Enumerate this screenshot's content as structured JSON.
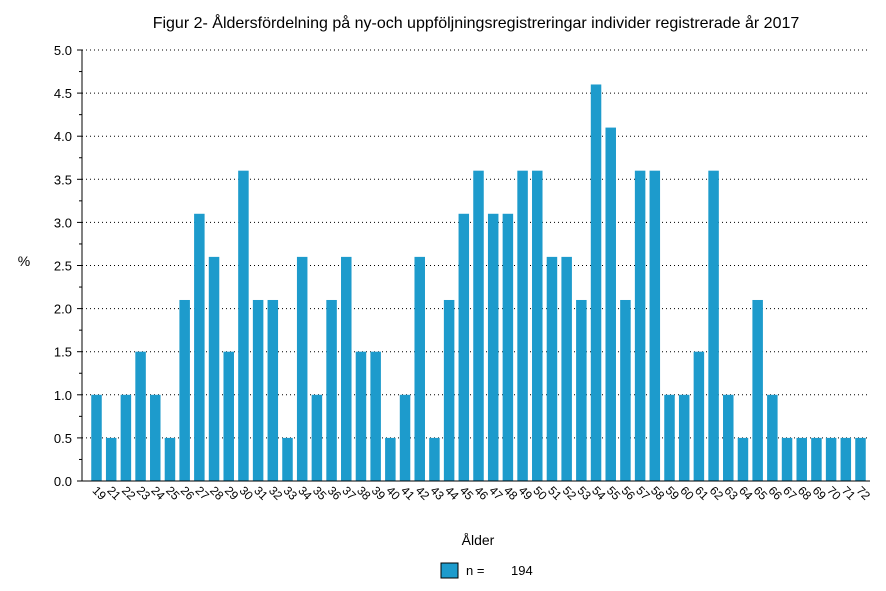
{
  "chart_data": {
    "type": "bar",
    "title": "Figur 2- Åldersfördelning på ny-och uppföljningsregistreringar individer registrerade år 2017",
    "xlabel": "Ålder",
    "ylabel": "%",
    "ylim": [
      0,
      5.0
    ],
    "yticks": [
      "0.0",
      "0.5",
      "1.0",
      "1.5",
      "2.0",
      "2.5",
      "3.0",
      "3.5",
      "4.0",
      "4.5",
      "5.0"
    ],
    "grid": "horizontal-dotted",
    "legend_position": "bottom-center",
    "bar_color": "#1d9bcc",
    "categories": [
      "19",
      "21",
      "22",
      "23",
      "24",
      "25",
      "26",
      "27",
      "28",
      "29",
      "30",
      "31",
      "32",
      "33",
      "34",
      "35",
      "36",
      "37",
      "38",
      "39",
      "40",
      "41",
      "42",
      "43",
      "44",
      "45",
      "46",
      "47",
      "48",
      "49",
      "50",
      "51",
      "52",
      "53",
      "54",
      "55",
      "56",
      "57",
      "58",
      "59",
      "60",
      "61",
      "62",
      "63",
      "64",
      "65",
      "66",
      "67",
      "68",
      "69",
      "70",
      "71",
      "72"
    ],
    "series": [
      {
        "name": "n =",
        "n": "194",
        "values": [
          1.0,
          0.5,
          1.0,
          1.5,
          1.0,
          0.5,
          2.1,
          3.1,
          2.6,
          1.5,
          3.6,
          2.1,
          2.1,
          0.5,
          2.6,
          1.0,
          2.1,
          2.6,
          1.5,
          1.5,
          0.5,
          1.0,
          2.6,
          0.5,
          2.1,
          3.1,
          3.6,
          3.1,
          3.1,
          3.6,
          3.6,
          2.6,
          2.6,
          2.1,
          4.6,
          4.1,
          2.1,
          3.6,
          3.6,
          1.0,
          1.0,
          1.5,
          3.6,
          1.0,
          0.5,
          2.1,
          1.0,
          0.5,
          0.5,
          0.5,
          0.5,
          0.5,
          0.5
        ]
      }
    ]
  }
}
